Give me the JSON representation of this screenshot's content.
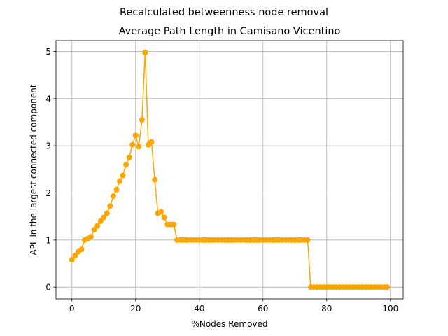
{
  "chart_data": {
    "type": "line",
    "suptitle": "Recalculated betweenness node removal",
    "title": "Average Path Length in Camisano Vicentino",
    "xlabel": "%Nodes Removed",
    "ylabel": "APL in the largest connected component",
    "xlim": [
      -5,
      104
    ],
    "ylim": [
      -0.25,
      5.23
    ],
    "xticks": [
      0,
      20,
      40,
      60,
      80,
      100
    ],
    "yticks": [
      0,
      1,
      2,
      3,
      4,
      5
    ],
    "grid": true,
    "color": "#ffa500",
    "marker": "circle",
    "series": [
      {
        "x": [
          0,
          1,
          2,
          3,
          4,
          5,
          6,
          7,
          8,
          9,
          10,
          11,
          12,
          13,
          14,
          15,
          16,
          17,
          18,
          19,
          20,
          21,
          22,
          23,
          24,
          25,
          26,
          27,
          28,
          29,
          30,
          31,
          32,
          33,
          34,
          35,
          36,
          37,
          38,
          39,
          40,
          41,
          42,
          43,
          44,
          45,
          46,
          47,
          48,
          49,
          50,
          51,
          52,
          53,
          54,
          55,
          56,
          57,
          58,
          59,
          60,
          61,
          62,
          63,
          64,
          65,
          66,
          67,
          68,
          69,
          70,
          71,
          72,
          73,
          74,
          75,
          76,
          77,
          78,
          79,
          80,
          81,
          82,
          83,
          84,
          85,
          86,
          87,
          88,
          89,
          90,
          91,
          92,
          93,
          94,
          95,
          96,
          97,
          98,
          99
        ],
        "y": [
          0.58,
          0.67,
          0.75,
          0.8,
          1.0,
          1.03,
          1.07,
          1.22,
          1.3,
          1.4,
          1.48,
          1.57,
          1.72,
          1.93,
          2.07,
          2.25,
          2.37,
          2.6,
          2.75,
          3.02,
          3.22,
          2.98,
          3.55,
          4.98,
          3.02,
          3.08,
          2.28,
          1.57,
          1.6,
          1.48,
          1.33,
          1.33,
          1.33,
          1.0,
          1.0,
          1.0,
          1.0,
          1.0,
          1.0,
          1.0,
          1.0,
          1.0,
          1.0,
          1.0,
          1.0,
          1.0,
          1.0,
          1.0,
          1.0,
          1.0,
          1.0,
          1.0,
          1.0,
          1.0,
          1.0,
          1.0,
          1.0,
          1.0,
          1.0,
          1.0,
          1.0,
          1.0,
          1.0,
          1.0,
          1.0,
          1.0,
          1.0,
          1.0,
          1.0,
          1.0,
          1.0,
          1.0,
          1.0,
          1.0,
          1.0,
          0.0,
          0.0,
          0.0,
          0.0,
          0.0,
          0.0,
          0.0,
          0.0,
          0.0,
          0.0,
          0.0,
          0.0,
          0.0,
          0.0,
          0.0,
          0.0,
          0.0,
          0.0,
          0.0,
          0.0,
          0.0,
          0.0,
          0.0,
          0.0,
          0.0
        ]
      }
    ]
  }
}
